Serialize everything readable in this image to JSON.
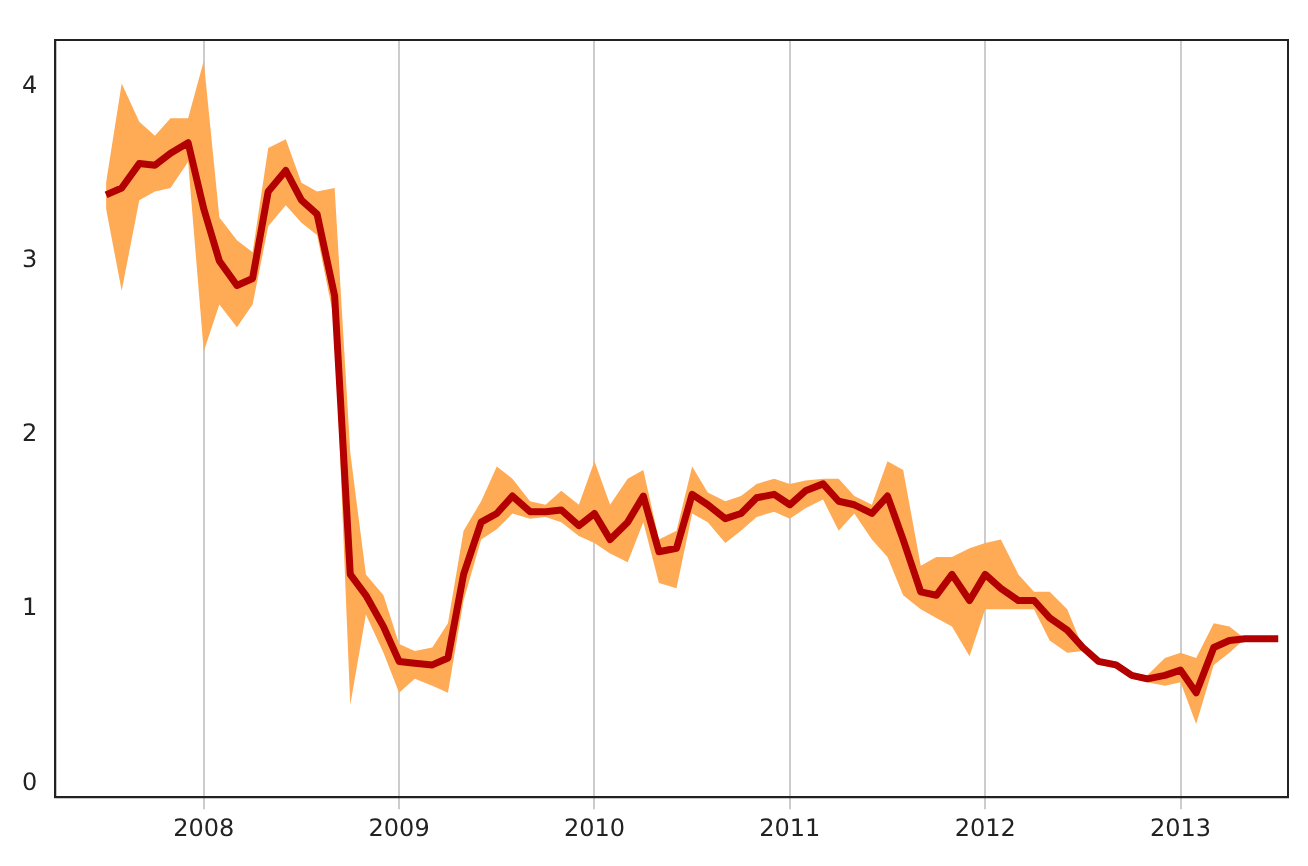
{
  "chart_data": {
    "type": "line",
    "xlim": [
      2007.24,
      2013.55
    ],
    "ylim": [
      -0.08,
      4.27
    ],
    "xticks": [
      2008,
      2009,
      2010,
      2011,
      2012,
      2013
    ],
    "yticks": [
      0,
      1,
      2,
      3,
      4
    ],
    "grid": "x",
    "marker": "none",
    "line_style": "solid",
    "x": [
      2007.5,
      2007.58,
      2007.67,
      2007.75,
      2007.83,
      2007.92,
      2008,
      2008.08,
      2008.17,
      2008.25,
      2008.33,
      2008.42,
      2008.5,
      2008.58,
      2008.67,
      2008.75,
      2008.83,
      2008.92,
      2009,
      2009.08,
      2009.17,
      2009.25,
      2009.33,
      2009.42,
      2009.5,
      2009.58,
      2009.67,
      2009.75,
      2009.83,
      2009.92,
      2010,
      2010.08,
      2010.17,
      2010.25,
      2010.33,
      2010.42,
      2010.5,
      2010.58,
      2010.67,
      2010.75,
      2010.83,
      2010.92,
      2011,
      2011.08,
      2011.17,
      2011.25,
      2011.33,
      2011.42,
      2011.5,
      2011.58,
      2011.67,
      2011.75,
      2011.83,
      2011.92,
      2012,
      2012.08,
      2012.17,
      2012.25,
      2012.33,
      2012.42,
      2012.5,
      2012.58,
      2012.67,
      2012.75,
      2012.83,
      2012.92,
      2013,
      2013.08,
      2013.17,
      2013.25,
      2013.33,
      2013.42,
      2013.5
    ],
    "series": [
      {
        "color": "#b30000",
        "values": [
          3.38,
          3.42,
          3.56,
          3.55,
          3.62,
          3.68,
          3.3,
          3.0,
          2.86,
          2.9,
          3.4,
          3.52,
          3.35,
          3.27,
          2.8,
          1.2,
          1.08,
          0.9,
          0.7,
          0.69,
          0.68,
          0.72,
          1.2,
          1.5,
          1.55,
          1.65,
          1.56,
          1.56,
          1.57,
          1.48,
          1.55,
          1.4,
          1.5,
          1.65,
          1.33,
          1.35,
          1.66,
          1.6,
          1.52,
          1.55,
          1.64,
          1.66,
          1.6,
          1.68,
          1.72,
          1.62,
          1.6,
          1.55,
          1.65,
          1.4,
          1.1,
          1.08,
          1.2,
          1.05,
          1.2,
          1.12,
          1.05,
          1.05,
          0.95,
          0.88,
          0.78,
          0.7,
          0.68,
          0.62,
          0.6,
          0.62,
          0.65,
          0.52,
          0.78,
          0.82,
          0.83,
          0.83,
          0.83
        ],
        "lower": [
          3.3,
          2.83,
          3.35,
          3.4,
          3.42,
          3.57,
          2.48,
          2.75,
          2.62,
          2.75,
          3.2,
          3.32,
          3.22,
          3.15,
          2.65,
          0.45,
          0.97,
          0.75,
          0.52,
          0.6,
          0.56,
          0.52,
          1.05,
          1.4,
          1.46,
          1.55,
          1.52,
          1.53,
          1.5,
          1.42,
          1.38,
          1.32,
          1.27,
          1.5,
          1.15,
          1.12,
          1.55,
          1.5,
          1.38,
          1.45,
          1.53,
          1.56,
          1.52,
          1.58,
          1.63,
          1.45,
          1.55,
          1.4,
          1.3,
          1.08,
          1.0,
          0.95,
          0.9,
          0.73,
          1.0,
          1.0,
          1.0,
          1.0,
          0.82,
          0.75,
          0.76,
          0.68,
          0.66,
          0.6,
          0.58,
          0.56,
          0.58,
          0.34,
          0.68,
          0.75,
          0.83,
          0.83,
          0.83
        ],
        "upper": [
          3.45,
          4.02,
          3.8,
          3.72,
          3.82,
          3.82,
          4.15,
          3.25,
          3.12,
          3.05,
          3.65,
          3.7,
          3.45,
          3.4,
          3.42,
          1.9,
          1.2,
          1.08,
          0.8,
          0.76,
          0.78,
          0.92,
          1.45,
          1.62,
          1.82,
          1.75,
          1.62,
          1.6,
          1.68,
          1.6,
          1.85,
          1.6,
          1.75,
          1.8,
          1.4,
          1.45,
          1.82,
          1.67,
          1.62,
          1.65,
          1.72,
          1.75,
          1.72,
          1.74,
          1.75,
          1.75,
          1.65,
          1.6,
          1.85,
          1.8,
          1.25,
          1.3,
          1.3,
          1.35,
          1.38,
          1.4,
          1.2,
          1.1,
          1.1,
          1.0,
          0.78,
          0.71,
          0.7,
          0.63,
          0.62,
          0.72,
          0.75,
          0.72,
          0.92,
          0.9,
          0.83,
          0.83,
          0.83
        ]
      }
    ]
  }
}
